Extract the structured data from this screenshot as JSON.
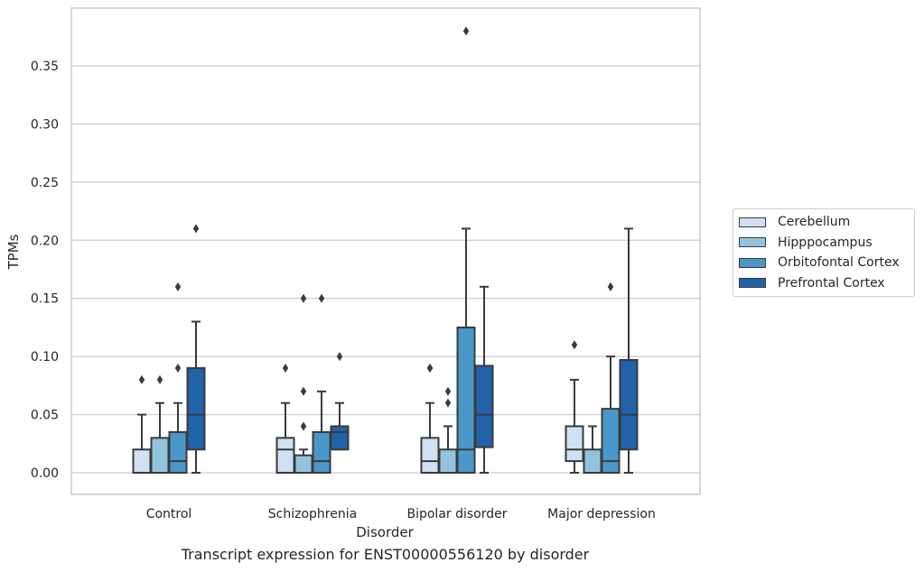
{
  "chart_data": {
    "type": "box",
    "title": "",
    "xlabel": "Disorder",
    "ylabel": "TPMs",
    "caption": "Transcript expression for ENST00000556120 by disorder",
    "ylim": [
      -0.018,
      0.4
    ],
    "yticks": [
      0.0,
      0.05,
      0.1,
      0.15,
      0.2,
      0.25,
      0.3,
      0.35
    ],
    "ytick_labels": [
      "0.00",
      "0.05",
      "0.10",
      "0.15",
      "0.20",
      "0.25",
      "0.30",
      "0.35"
    ],
    "grid": "horizontal",
    "legend_position": "right",
    "categories": [
      "Control",
      "Schizophrenia",
      "Bipolar disorder",
      "Major depression"
    ],
    "series": [
      {
        "name": "Cerebellum",
        "color": "#cfe1f2",
        "boxes": [
          {
            "whisker_low": 0.0,
            "q1": 0.0,
            "median": 0.0,
            "q3": 0.02,
            "whisker_high": 0.05,
            "outliers": [
              0.08
            ]
          },
          {
            "whisker_low": 0.0,
            "q1": 0.0,
            "median": 0.02,
            "q3": 0.03,
            "whisker_high": 0.06,
            "outliers": [
              0.09
            ]
          },
          {
            "whisker_low": 0.0,
            "q1": 0.0,
            "median": 0.01,
            "q3": 0.03,
            "whisker_high": 0.06,
            "outliers": [
              0.09,
              0.09
            ]
          },
          {
            "whisker_low": 0.0,
            "q1": 0.01,
            "median": 0.02,
            "q3": 0.04,
            "whisker_high": 0.08,
            "outliers": [
              0.11
            ]
          }
        ]
      },
      {
        "name": "Hipppocampus",
        "color": "#93c4de",
        "boxes": [
          {
            "whisker_low": 0.0,
            "q1": 0.0,
            "median": 0.0,
            "q3": 0.03,
            "whisker_high": 0.06,
            "outliers": [
              0.08
            ]
          },
          {
            "whisker_low": 0.0,
            "q1": 0.0,
            "median": 0.0,
            "q3": 0.015,
            "whisker_high": 0.02,
            "outliers": [
              0.04,
              0.07,
              0.15
            ]
          },
          {
            "whisker_low": 0.0,
            "q1": 0.0,
            "median": 0.0,
            "q3": 0.02,
            "whisker_high": 0.04,
            "outliers": [
              0.06,
              0.07
            ]
          },
          {
            "whisker_low": 0.0,
            "q1": 0.0,
            "median": 0.0,
            "q3": 0.02,
            "whisker_high": 0.04,
            "outliers": []
          }
        ]
      },
      {
        "name": "Orbitofontal Cortex",
        "color": "#4a98c9",
        "boxes": [
          {
            "whisker_low": 0.0,
            "q1": 0.0,
            "median": 0.01,
            "q3": 0.035,
            "whisker_high": 0.06,
            "outliers": [
              0.09,
              0.16
            ]
          },
          {
            "whisker_low": 0.0,
            "q1": 0.0,
            "median": 0.01,
            "q3": 0.035,
            "whisker_high": 0.07,
            "outliers": [
              0.15
            ]
          },
          {
            "whisker_low": 0.0,
            "q1": 0.0,
            "median": 0.02,
            "q3": 0.125,
            "whisker_high": 0.21,
            "outliers": [
              0.38
            ]
          },
          {
            "whisker_low": 0.0,
            "q1": 0.0,
            "median": 0.01,
            "q3": 0.055,
            "whisker_high": 0.1,
            "outliers": [
              0.16
            ]
          }
        ]
      },
      {
        "name": "Prefrontal Cortex",
        "color": "#2163aa",
        "boxes": [
          {
            "whisker_low": 0.0,
            "q1": 0.02,
            "median": 0.05,
            "q3": 0.09,
            "whisker_high": 0.13,
            "outliers": [
              0.21
            ]
          },
          {
            "whisker_low": 0.02,
            "q1": 0.02,
            "median": 0.035,
            "q3": 0.04,
            "whisker_high": 0.06,
            "outliers": [
              0.1
            ]
          },
          {
            "whisker_low": 0.0,
            "q1": 0.022,
            "median": 0.05,
            "q3": 0.092,
            "whisker_high": 0.16,
            "outliers": []
          },
          {
            "whisker_low": 0.0,
            "q1": 0.02,
            "median": 0.05,
            "q3": 0.097,
            "whisker_high": 0.21,
            "outliers": []
          }
        ]
      }
    ]
  }
}
